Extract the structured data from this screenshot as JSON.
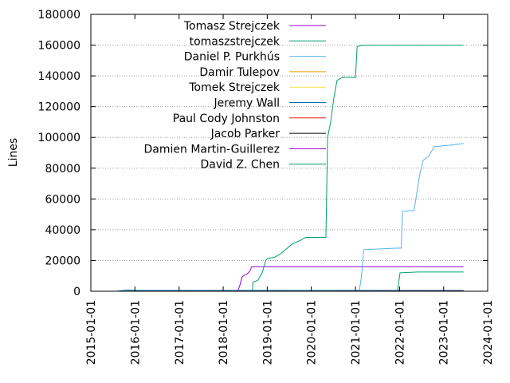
{
  "chart_data": {
    "type": "line",
    "title": "",
    "xlabel": "",
    "ylabel": "Lines",
    "xlim": [
      "2015-01-01",
      "2024-01-01"
    ],
    "ylim": [
      0,
      180000
    ],
    "grid": "horizontal dotted",
    "legend_position": "top-left inside",
    "x_tick_labels": [
      "2015-01-01",
      "2016-01-01",
      "2017-01-01",
      "2018-01-01",
      "2019-01-01",
      "2020-01-01",
      "2021-01-01",
      "2022-01-01",
      "2023-01-01",
      "2024-01-01"
    ],
    "y_tick_labels": [
      "0",
      "20000",
      "40000",
      "60000",
      "80000",
      "100000",
      "120000",
      "140000",
      "160000",
      "180000"
    ],
    "series": [
      {
        "name": "Tomasz Strejczek",
        "color": "#9400d3",
        "points": [
          [
            "2018-05-01",
            0
          ],
          [
            "2018-05-20",
            4000
          ],
          [
            "2018-06-05",
            9000
          ],
          [
            "2018-06-25",
            10500
          ],
          [
            "2018-07-15",
            11000
          ],
          [
            "2018-08-10",
            13000
          ],
          [
            "2018-08-25",
            16000
          ],
          [
            "2019-06-01",
            16000
          ],
          [
            "2023-06-15",
            16000
          ]
        ]
      },
      {
        "name": "tomaszstrejczek",
        "color": "#009e73",
        "points": [
          [
            "2018-09-01",
            0
          ],
          [
            "2018-09-05",
            6000
          ],
          [
            "2018-10-15",
            7000
          ],
          [
            "2018-11-20",
            12000
          ],
          [
            "2018-12-20",
            20000
          ],
          [
            "2019-01-05",
            21500
          ],
          [
            "2019-03-01",
            22000
          ],
          [
            "2019-04-15",
            24000
          ],
          [
            "2019-06-01",
            27000
          ],
          [
            "2019-08-01",
            31000
          ],
          [
            "2019-10-01",
            33000
          ],
          [
            "2019-11-15",
            35000
          ],
          [
            "2020-05-01",
            35000
          ],
          [
            "2020-05-15",
            100000
          ],
          [
            "2020-06-10",
            110000
          ],
          [
            "2020-07-05",
            125000
          ],
          [
            "2020-08-01",
            137000
          ],
          [
            "2020-09-15",
            139000
          ],
          [
            "2021-01-01",
            139000
          ],
          [
            "2021-01-15",
            159000
          ],
          [
            "2021-03-01",
            160000
          ],
          [
            "2023-06-15",
            160000
          ]
        ]
      },
      {
        "name": "Daniel P. Purkhús",
        "color": "#56b4e9",
        "points": [
          [
            "2021-02-01",
            0
          ],
          [
            "2021-02-20",
            10000
          ],
          [
            "2021-03-10",
            27000
          ],
          [
            "2021-12-01",
            28000
          ],
          [
            "2022-01-15",
            28000
          ],
          [
            "2022-01-25",
            52000
          ],
          [
            "2022-05-01",
            52500
          ],
          [
            "2022-06-15",
            75000
          ],
          [
            "2022-07-15",
            85000
          ],
          [
            "2022-09-01",
            88000
          ],
          [
            "2022-10-15",
            94000
          ],
          [
            "2023-03-01",
            95000
          ],
          [
            "2023-06-15",
            96000
          ]
        ]
      },
      {
        "name": "Damir Tulepov",
        "color": "#e69f00",
        "points": [
          [
            "2015-09-01",
            0
          ],
          [
            "2016-03-01",
            500
          ],
          [
            "2023-06-15",
            500
          ]
        ]
      },
      {
        "name": "Tomek Strejczek",
        "color": "#f0e442",
        "points": [
          [
            "2016-01-01",
            0
          ],
          [
            "2016-06-01",
            200
          ],
          [
            "2023-06-15",
            200
          ]
        ]
      },
      {
        "name": "Jeremy Wall",
        "color": "#0072b2",
        "points": [
          [
            "2015-08-01",
            0
          ],
          [
            "2015-11-01",
            800
          ],
          [
            "2016-01-01",
            500
          ],
          [
            "2023-06-15",
            500
          ]
        ]
      },
      {
        "name": "Paul Cody Johnston",
        "color": "#e51e10",
        "points": [
          [
            "2017-01-01",
            0
          ],
          [
            "2023-06-15",
            100
          ]
        ]
      },
      {
        "name": "Jacob Parker",
        "color": "#000000",
        "points": [
          [
            "2019-01-01",
            0
          ],
          [
            "2023-06-15",
            50
          ]
        ]
      },
      {
        "name": "Damien Martin-Guillerez",
        "color": "#9400d3",
        "points": [
          [
            "2019-06-01",
            0
          ],
          [
            "2023-06-15",
            30
          ]
        ]
      },
      {
        "name": "David Z. Chen",
        "color": "#009e73",
        "points": [
          [
            "2021-12-15",
            0
          ],
          [
            "2022-01-05",
            12000
          ],
          [
            "2022-06-01",
            12500
          ],
          [
            "2023-06-15",
            12500
          ]
        ]
      }
    ]
  }
}
